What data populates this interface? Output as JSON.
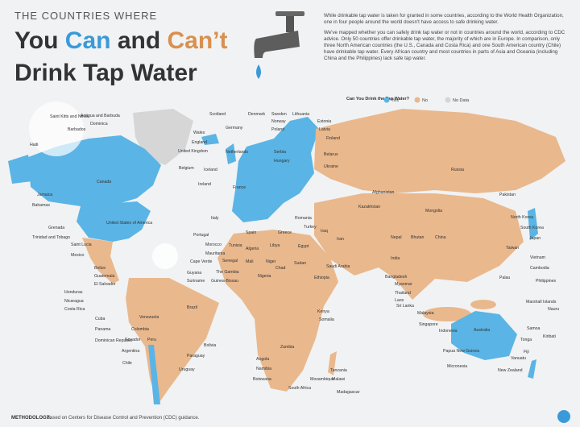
{
  "header": {
    "kicker": "THE COUNTRIES WHERE",
    "you": "You",
    "can": "Can",
    "and": "and",
    "cant": "Can’t",
    "line2": "Drink Tap Water"
  },
  "intro": [
    "While drinkable tap water is taken for granted in some countries, according to the World Health Organization, one in four people around the world doesn't have access to safe drinking water.",
    "We've mapped whether you can safely drink tap water or not in countries around the world, according to CDC advice. Only 50 countries offer drinkable tap water, the majority of which are in Europe. In comparison, only three North American countries (the U.S., Canada and Costa Rica) and one South American country (Chile) have drinkable tap water. Every African country and most countries in parts of Asia and Oceania (including China and the Philippines) lack safe tap water."
  ],
  "legend": {
    "title": "Can You Drink the Tap Water?",
    "items": [
      {
        "label": "Yes",
        "color": "#5ab4e5"
      },
      {
        "label": "No",
        "color": "#e9b88d"
      },
      {
        "label": "No Data",
        "color": "#d6d6d6"
      }
    ]
  },
  "countries": [
    "Canada",
    "United States of America",
    "Mexico",
    "Saint Lucia",
    "Belize",
    "Guatemala",
    "El Salvador",
    "Honduras",
    "Nicaragua",
    "Costa Rica",
    "Cuba",
    "Panama",
    "Dominican Republic",
    "Haiti",
    "Jamaica",
    "Bahamas",
    "Trinidad and Tobago",
    "Grenada",
    "Saint Kitts and Nevis",
    "Antigua and Barbuda",
    "Dominica",
    "Barbados",
    "Venezuela",
    "Colombia",
    "Ecuador",
    "Peru",
    "Argentina",
    "Chile",
    "Bolivia",
    "Paraguay",
    "Uruguay",
    "Brazil",
    "Guyana",
    "Suriname",
    "Cape Verde",
    "Senegal",
    "The Gambia",
    "Guinea-Bissau",
    "Morocco",
    "Mauritania",
    "Tunisia",
    "Algeria",
    "Libya",
    "Egypt",
    "Mali",
    "Niger",
    "Chad",
    "Sudan",
    "Nigeria",
    "Ethiopia",
    "Kenya",
    "Somalia",
    "Angola",
    "Zambia",
    "Namibia",
    "Botswana",
    "South Africa",
    "Madagascar",
    "Mozambique",
    "Tanzania",
    "Malawi",
    "Iceland",
    "Ireland",
    "United Kingdom",
    "Scotland",
    "Wales",
    "England",
    "France",
    "Spain",
    "Portugal",
    "Italy",
    "Germany",
    "Belgium",
    "Netherlands",
    "Norway",
    "Sweden",
    "Finland",
    "Denmark",
    "Poland",
    "Lithuania",
    "Latvia",
    "Estonia",
    "Russia",
    "Ukraine",
    "Belarus",
    "Turkey",
    "Greece",
    "Serbia",
    "Hungary",
    "Romania",
    "Kazakhstan",
    "Mongolia",
    "China",
    "Japan",
    "North Korea",
    "South Korea",
    "India",
    "Pakistan",
    "Afghanistan",
    "Iran",
    "Iraq",
    "Saudi Arabia",
    "Nepal",
    "Bhutan",
    "Bangladesh",
    "Myanmar",
    "Thailand",
    "Vietnam",
    "Cambodia",
    "Philippines",
    "Malaysia",
    "Indonesia",
    "Singapore",
    "Sri Lanka",
    "Taiwan",
    "Laos",
    "Australia",
    "New Zealand",
    "Papua New Guinea",
    "Fiji",
    "Samoa",
    "Tonga",
    "Kiribati",
    "Vanuatu",
    "Nauru",
    "Marshall Islands",
    "Palau",
    "Micronesia"
  ],
  "footer": {
    "methodology_label": "METHODOLOGY:",
    "methodology": "Based on Centers for Disease Control and Prevention (CDC) guidance."
  }
}
